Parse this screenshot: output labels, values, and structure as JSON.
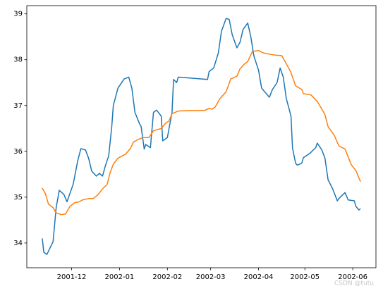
{
  "chart_data": {
    "type": "line",
    "watermark": "CSDN @tutu",
    "xlim": [
      "2001-11-02",
      "2002-06-16"
    ],
    "xticks": [
      {
        "value": "2001-12-01",
        "label": "2001-12"
      },
      {
        "value": "2002-01-01",
        "label": "2002-01"
      },
      {
        "value": "2002-02-01",
        "label": "2002-02"
      },
      {
        "value": "2002-03-01",
        "label": "2002-03"
      },
      {
        "value": "2002-04-01",
        "label": "2002-04"
      },
      {
        "value": "2002-05-01",
        "label": "2002-05"
      },
      {
        "value": "2002-06-01",
        "label": "2002-06"
      }
    ],
    "ylim": [
      33.46,
      39.18
    ],
    "yticks": [
      34,
      35,
      36,
      37,
      38,
      39
    ],
    "series": [
      {
        "color": "#1f77b4",
        "x": [
          "2001-11-12",
          "2001-11-13",
          "2001-11-15",
          "2001-11-19",
          "2001-11-21",
          "2001-11-23",
          "2001-11-26",
          "2001-11-28",
          "2001-12-02",
          "2001-12-05",
          "2001-12-07",
          "2001-12-10",
          "2001-12-12",
          "2001-12-14",
          "2001-12-17",
          "2001-12-19",
          "2001-12-21",
          "2001-12-23",
          "2001-12-25",
          "2001-12-27",
          "2001-12-28",
          "2001-12-31",
          "2002-01-04",
          "2002-01-07",
          "2002-01-09",
          "2002-01-11",
          "2002-01-14",
          "2002-01-15",
          "2002-01-17",
          "2002-01-18",
          "2002-01-21",
          "2002-01-23",
          "2002-01-25",
          "2002-01-28",
          "2002-01-29",
          "2002-02-01",
          "2002-02-04",
          "2002-02-05",
          "2002-02-07",
          "2002-02-08",
          "2002-02-27",
          "2002-02-28",
          "2002-03-03",
          "2002-03-06",
          "2002-03-08",
          "2002-03-11",
          "2002-03-13",
          "2002-03-15",
          "2002-03-18",
          "2002-03-20",
          "2002-03-22",
          "2002-03-25",
          "2002-03-27",
          "2002-03-29",
          "2002-04-01",
          "2002-04-03",
          "2002-04-05",
          "2002-04-08",
          "2002-04-10",
          "2002-04-13",
          "2002-04-15",
          "2002-04-17",
          "2002-04-19",
          "2002-04-22",
          "2002-04-23",
          "2002-04-25",
          "2002-04-26",
          "2002-04-29",
          "2002-04-30",
          "2002-05-04",
          "2002-05-08",
          "2002-05-09",
          "2002-05-12",
          "2002-05-14",
          "2002-05-16",
          "2002-05-19",
          "2002-05-22",
          "2002-05-23",
          "2002-05-27",
          "2002-05-29",
          "2002-06-02",
          "2002-06-03",
          "2002-06-05",
          "2002-06-06"
        ],
        "values": [
          34.1,
          33.8,
          33.75,
          34.03,
          34.77,
          35.15,
          35.06,
          34.9,
          35.28,
          35.8,
          36.06,
          36.03,
          35.85,
          35.57,
          35.46,
          35.52,
          35.46,
          35.7,
          35.9,
          36.54,
          37.0,
          37.38,
          37.58,
          37.62,
          37.38,
          36.85,
          36.6,
          36.54,
          36.05,
          36.15,
          36.08,
          36.85,
          36.9,
          36.77,
          36.23,
          36.3,
          36.85,
          37.57,
          37.5,
          37.62,
          37.57,
          37.74,
          37.82,
          38.15,
          38.62,
          38.9,
          38.88,
          38.54,
          38.26,
          38.38,
          38.66,
          38.8,
          38.5,
          38.08,
          37.77,
          37.38,
          37.3,
          37.18,
          37.35,
          37.5,
          37.82,
          37.62,
          37.15,
          36.77,
          36.07,
          35.74,
          35.7,
          35.74,
          35.86,
          35.95,
          36.08,
          36.18,
          36.03,
          35.85,
          35.38,
          35.18,
          34.92,
          34.97,
          35.1,
          34.94,
          34.92,
          34.8,
          34.72,
          34.75
        ]
      },
      {
        "color": "#ff7f0e",
        "x": [
          "2001-11-12",
          "2001-11-14",
          "2001-11-16",
          "2001-11-19",
          "2001-11-21",
          "2001-11-24",
          "2001-11-27",
          "2001-11-30",
          "2001-12-03",
          "2001-12-06",
          "2001-12-08",
          "2001-12-12",
          "2001-12-15",
          "2001-12-18",
          "2001-12-21",
          "2001-12-24",
          "2001-12-26",
          "2001-12-28",
          "2001-12-31",
          "2002-01-05",
          "2002-01-08",
          "2002-01-10",
          "2002-01-13",
          "2002-01-16",
          "2002-01-20",
          "2002-01-23",
          "2002-01-28",
          "2002-01-31",
          "2002-02-02",
          "2002-02-04",
          "2002-02-08",
          "2002-02-16",
          "2002-02-25",
          "2002-02-28",
          "2002-03-02",
          "2002-03-04",
          "2002-03-07",
          "2002-03-11",
          "2002-03-14",
          "2002-03-18",
          "2002-03-20",
          "2002-03-23",
          "2002-03-25",
          "2002-03-28",
          "2002-04-01",
          "2002-04-04",
          "2002-04-08",
          "2002-04-12",
          "2002-04-16",
          "2002-04-20",
          "2002-04-22",
          "2002-04-25",
          "2002-04-29",
          "2002-04-30",
          "2002-05-05",
          "2002-05-09",
          "2002-05-12",
          "2002-05-14",
          "2002-05-16",
          "2002-05-20",
          "2002-05-23",
          "2002-05-27",
          "2002-05-31",
          "2002-06-03",
          "2002-06-05",
          "2002-06-06"
        ],
        "values": [
          35.2,
          35.08,
          34.85,
          34.77,
          34.66,
          34.62,
          34.63,
          34.8,
          34.88,
          34.9,
          34.94,
          34.97,
          34.97,
          35.05,
          35.18,
          35.28,
          35.54,
          35.72,
          35.85,
          35.94,
          36.06,
          36.2,
          36.26,
          36.3,
          36.3,
          36.45,
          36.5,
          36.62,
          36.66,
          36.82,
          36.88,
          36.89,
          36.89,
          36.94,
          36.92,
          36.97,
          37.15,
          37.3,
          37.58,
          37.64,
          37.8,
          37.91,
          37.96,
          38.18,
          38.2,
          38.15,
          38.12,
          38.1,
          38.09,
          37.85,
          37.72,
          37.43,
          37.35,
          37.26,
          37.23,
          37.09,
          36.92,
          36.8,
          36.54,
          36.35,
          36.12,
          36.05,
          35.71,
          35.58,
          35.42,
          35.34
        ]
      }
    ]
  }
}
